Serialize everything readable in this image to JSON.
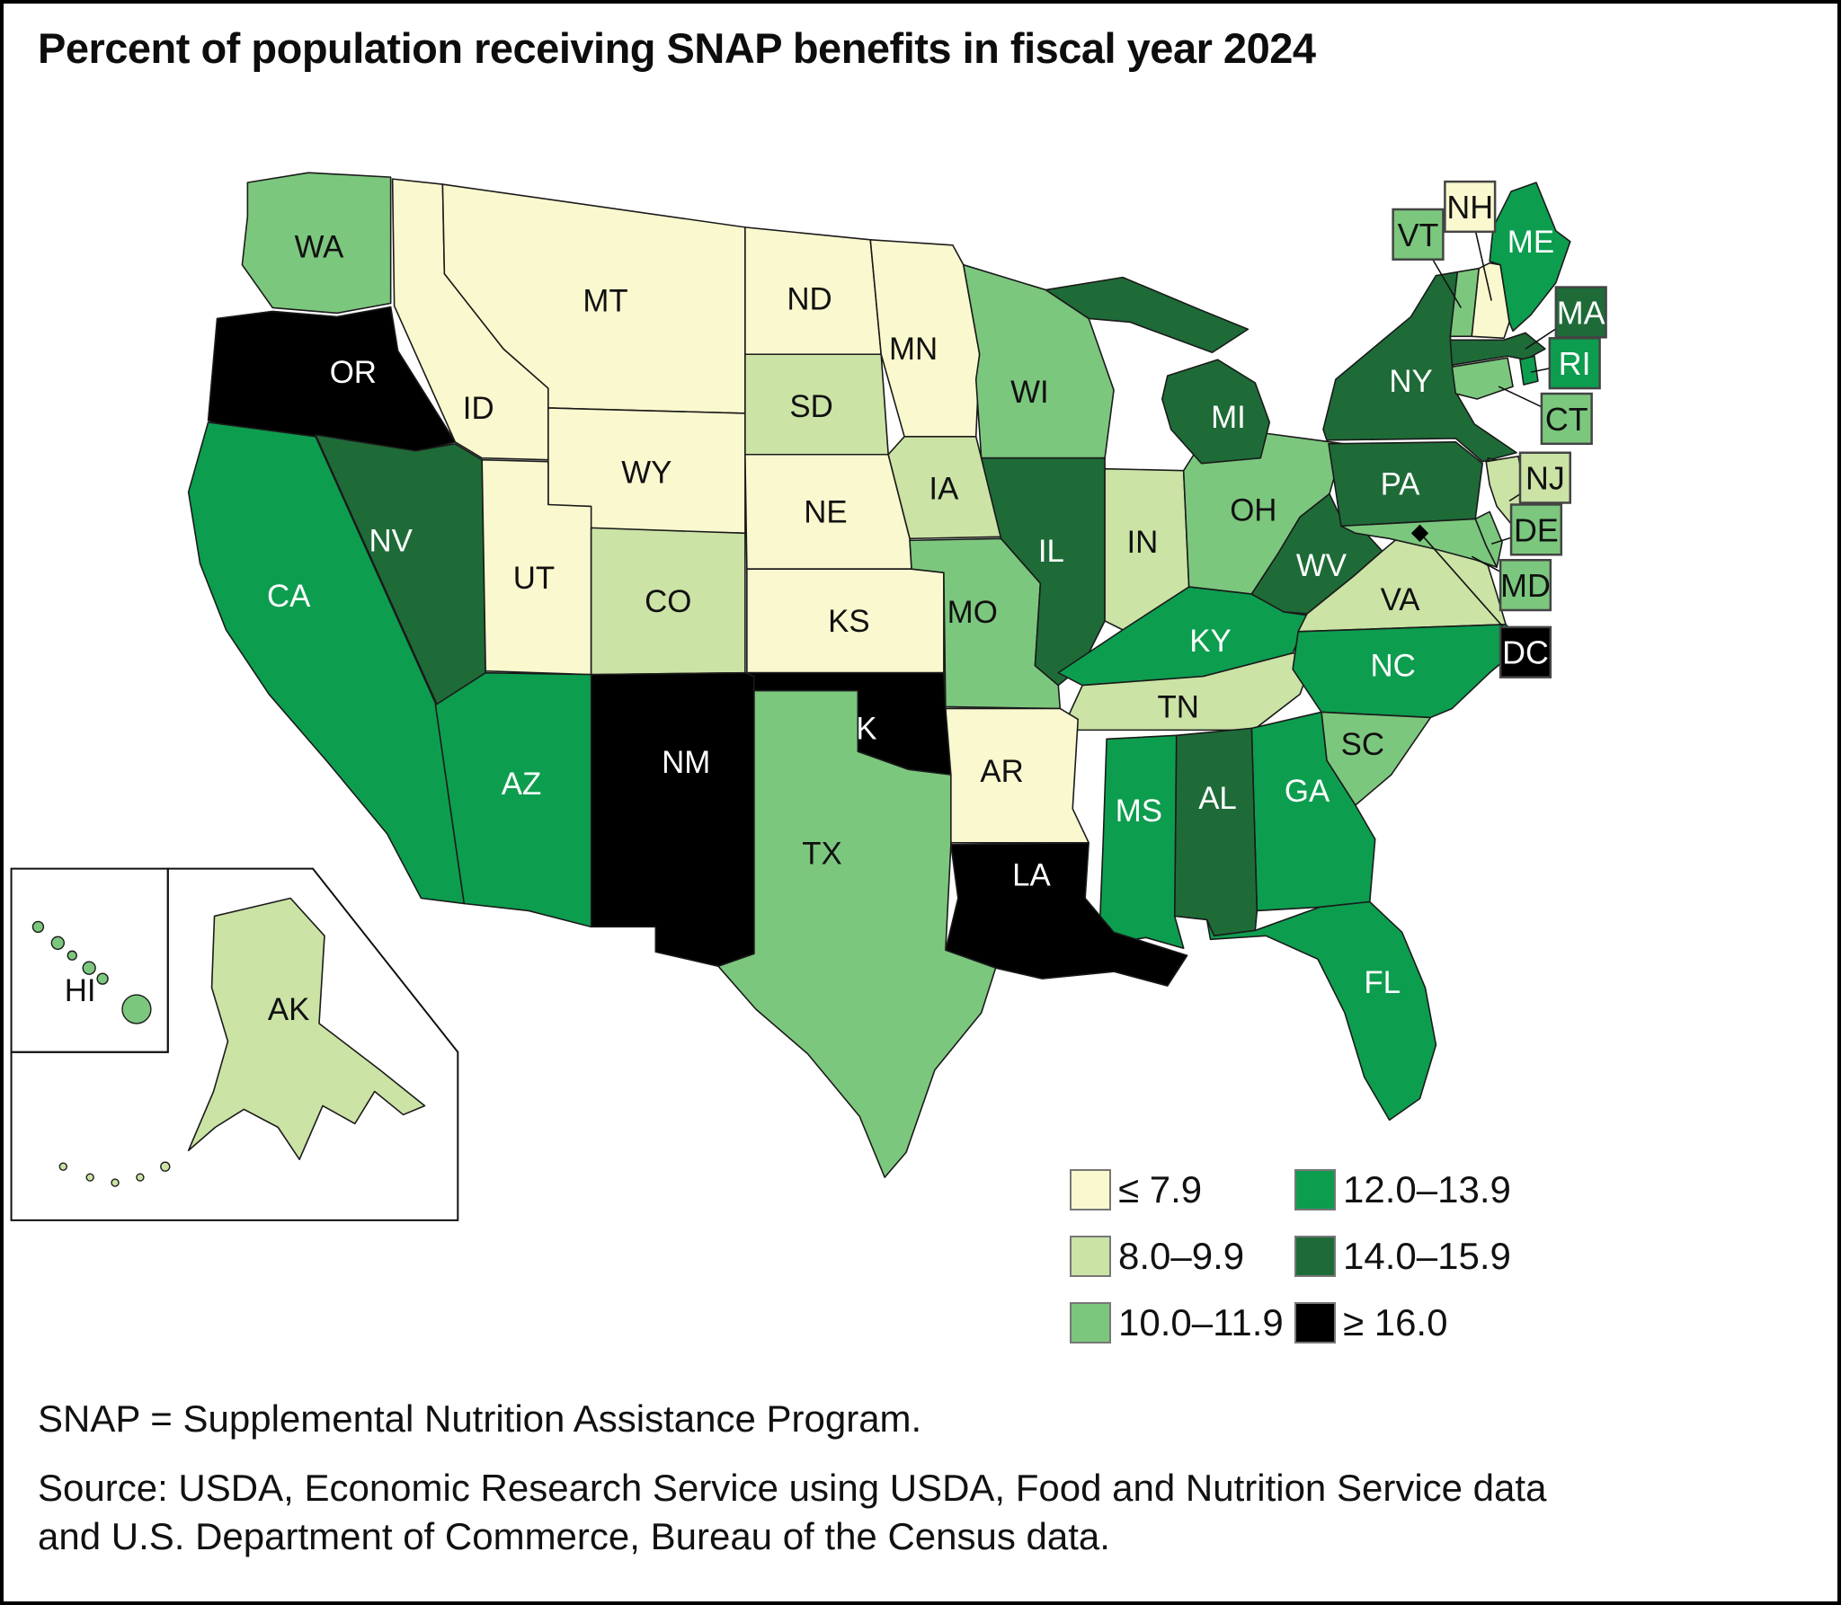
{
  "title": "Percent of population receiving SNAP benefits in fiscal year 2024",
  "legend": {
    "items": [
      {
        "label": "≤ 7.9",
        "color": "#FAF8CE"
      },
      {
        "label": "8.0–9.9",
        "color": "#CBE3A5"
      },
      {
        "label": "10.0–11.9",
        "color": "#7CC77E"
      },
      {
        "label": "12.0–13.9",
        "color": "#0D9D4F"
      },
      {
        "label": "14.0–15.9",
        "color": "#1E6B38"
      },
      {
        "label": "≥ 16.0",
        "color": "#000000"
      }
    ]
  },
  "footnotes": {
    "abbreviation": "SNAP = Supplemental Nutrition Assistance Program.",
    "source": "Source: USDA, Economic Research Service using USDA, Food and Nutrition Service data and U.S. Department of Commerce, Bureau of the Census data."
  },
  "insets": {
    "hawaii_label": "HI",
    "alaska_label": "AK"
  },
  "chart_data": {
    "type": "choropleth",
    "title": "Percent of population receiving SNAP benefits in fiscal year 2024",
    "unit": "percent of state population receiving SNAP benefits, fiscal year 2024",
    "bins": [
      {
        "label": "≤ 7.9",
        "color": "#FAF8CE"
      },
      {
        "label": "8.0–9.9",
        "color": "#CBE3A5"
      },
      {
        "label": "10.0–11.9",
        "color": "#7CC77E"
      },
      {
        "label": "12.0–13.9",
        "color": "#0D9D4F"
      },
      {
        "label": "14.0–15.9",
        "color": "#1E6B38"
      },
      {
        "label": "≥ 16.0",
        "color": "#000000"
      }
    ],
    "legend_position": "bottom-right",
    "states": [
      {
        "code": "WA",
        "bin": "10.0–11.9"
      },
      {
        "code": "OR",
        "bin": "≥ 16.0"
      },
      {
        "code": "CA",
        "bin": "12.0–13.9"
      },
      {
        "code": "NV",
        "bin": "14.0–15.9"
      },
      {
        "code": "ID",
        "bin": "≤ 7.9"
      },
      {
        "code": "MT",
        "bin": "≤ 7.9"
      },
      {
        "code": "WY",
        "bin": "≤ 7.9"
      },
      {
        "code": "UT",
        "bin": "≤ 7.9"
      },
      {
        "code": "CO",
        "bin": "8.0–9.9"
      },
      {
        "code": "AZ",
        "bin": "12.0–13.9"
      },
      {
        "code": "NM",
        "bin": "≥ 16.0"
      },
      {
        "code": "ND",
        "bin": "≤ 7.9"
      },
      {
        "code": "SD",
        "bin": "8.0–9.9"
      },
      {
        "code": "NE",
        "bin": "≤ 7.9"
      },
      {
        "code": "KS",
        "bin": "≤ 7.9"
      },
      {
        "code": "OK",
        "bin": "≥ 16.0"
      },
      {
        "code": "TX",
        "bin": "10.0–11.9"
      },
      {
        "code": "MN",
        "bin": "≤ 7.9"
      },
      {
        "code": "IA",
        "bin": "8.0–9.9"
      },
      {
        "code": "MO",
        "bin": "10.0–11.9"
      },
      {
        "code": "AR",
        "bin": "≤ 7.9"
      },
      {
        "code": "LA",
        "bin": "≥ 16.0"
      },
      {
        "code": "WI",
        "bin": "10.0–11.9"
      },
      {
        "code": "IL",
        "bin": "14.0–15.9"
      },
      {
        "code": "IN",
        "bin": "8.0–9.9"
      },
      {
        "code": "OH",
        "bin": "10.0–11.9"
      },
      {
        "code": "MI",
        "bin": "14.0–15.9"
      },
      {
        "code": "KY",
        "bin": "12.0–13.9"
      },
      {
        "code": "TN",
        "bin": "8.0–9.9"
      },
      {
        "code": "MS",
        "bin": "12.0–13.9"
      },
      {
        "code": "AL",
        "bin": "14.0–15.9"
      },
      {
        "code": "GA",
        "bin": "12.0–13.9"
      },
      {
        "code": "FL",
        "bin": "12.0–13.9"
      },
      {
        "code": "SC",
        "bin": "10.0–11.9"
      },
      {
        "code": "NC",
        "bin": "12.0–13.9"
      },
      {
        "code": "VA",
        "bin": "8.0–9.9"
      },
      {
        "code": "WV",
        "bin": "14.0–15.9"
      },
      {
        "code": "PA",
        "bin": "14.0–15.9"
      },
      {
        "code": "NY",
        "bin": "14.0–15.9"
      },
      {
        "code": "NJ",
        "bin": "8.0–9.9"
      },
      {
        "code": "DE",
        "bin": "10.0–11.9"
      },
      {
        "code": "MD",
        "bin": "10.0–11.9"
      },
      {
        "code": "DC",
        "bin": "≥ 16.0"
      },
      {
        "code": "CT",
        "bin": "10.0–11.9"
      },
      {
        "code": "RI",
        "bin": "12.0–13.9"
      },
      {
        "code": "MA",
        "bin": "14.0–15.9"
      },
      {
        "code": "VT",
        "bin": "10.0–11.9"
      },
      {
        "code": "NH",
        "bin": "≤ 7.9"
      },
      {
        "code": "ME",
        "bin": "12.0–13.9"
      },
      {
        "code": "AK",
        "bin": "8.0–9.9"
      },
      {
        "code": "HI",
        "bin": "10.0–11.9"
      }
    ],
    "boxed_labels": [
      "VT",
      "NH",
      "MA",
      "RI",
      "CT",
      "NJ",
      "DE",
      "MD",
      "DC"
    ]
  }
}
